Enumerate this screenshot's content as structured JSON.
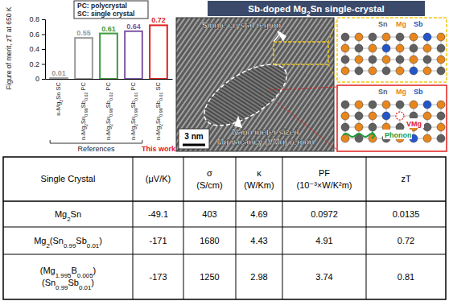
{
  "chart_data": {
    "type": "bar",
    "y_label": "Figure of merit, zT at 650 K",
    "categories": [
      "n-Mg2Sn SC",
      "n-Mg2Sn0.98Sb0.02 PC",
      "n-Mg2Sn0.98Sb0.02 PC",
      "n-Mg2Sn0.99Sb0.01 PC",
      "n-Mg2Sn0.99Sb0.01 SC"
    ],
    "values": [
      0.01,
      0.55,
      0.61,
      0.64,
      0.72
    ],
    "colors": [
      "#9a9a9a",
      "#9a9a9a",
      "#3f9a3f",
      "#7e57a6",
      "#e0201e"
    ],
    "ylim": [
      0,
      0.8
    ],
    "yticks": [
      0,
      0.2,
      0.4,
      0.6,
      0.8
    ],
    "data_labels": true,
    "annotations": [
      "PC: polycrystal",
      "SC: single crystal",
      "References",
      "This work"
    ]
  },
  "image": {
    "title": "Sb-doped Mg2Sn single-crystal",
    "crystal_label": "Single crystal region",
    "vacancy_label": [
      "Nano meter sized",
      "Mg vacancy (VMg) region"
    ],
    "scale_bar": "3 nm",
    "insets": [
      {
        "atoms": [
          "Sn",
          "Mg",
          "Sb"
        ]
      },
      {
        "atoms": [
          "Sn",
          "Mg",
          "Sb"
        ],
        "vacancy": "VMg",
        "wave": "Phonon"
      }
    ]
  },
  "table": {
    "header": [
      [
        "Single Crystal"
      ],
      [
        "(μV/K)"
      ],
      [
        "σ",
        "(S/cm)"
      ],
      [
        "κ",
        "(W/Km)"
      ],
      [
        "PF",
        "(10⁻³×W/K²m)"
      ],
      [
        "zT"
      ]
    ],
    "rows": [
      {
        "label": [
          "Mg2Sn"
        ],
        "values": [
          "-49.1",
          "403",
          "4.69",
          "0.0972",
          "0.0135"
        ]
      },
      {
        "label": [
          "Mg2(Sn0.99Sb0.01)"
        ],
        "values": [
          "-171",
          "1680",
          "4.43",
          "4.91",
          "0.72"
        ]
      },
      {
        "label": [
          "(Mg1.995B0.005)",
          "(Sn0.99Sb0.01)"
        ],
        "values": [
          "-173",
          "1250",
          "2.98",
          "3.74",
          "0.81"
        ]
      }
    ]
  }
}
